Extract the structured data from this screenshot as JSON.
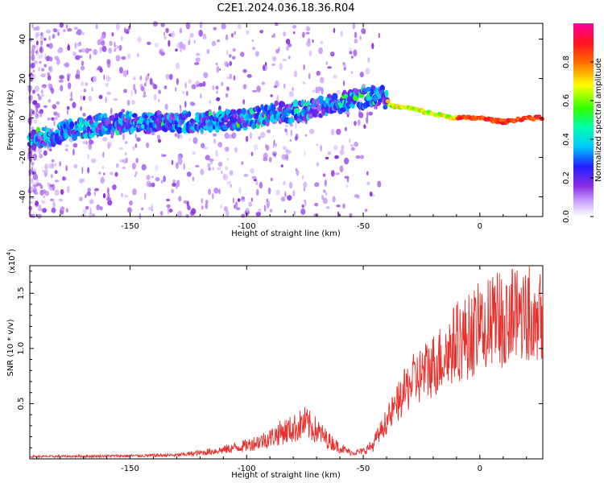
{
  "title": "C2E1.2024.036.18.36.R04",
  "colors": {
    "snr_line": "#e8302c",
    "background": "#ffffff",
    "axes": "#000000"
  },
  "chart_data": [
    {
      "type": "heatmap",
      "xlabel": "Height of straight line (km)",
      "ylabel": "Frequency (Hz)",
      "xlim": [
        -193,
        27
      ],
      "ylim": [
        -50,
        48
      ],
      "xticks": [
        -150,
        -100,
        -50,
        0
      ],
      "yticks": [
        -40,
        -20,
        0,
        20,
        40
      ],
      "colorbar": {
        "label": "Normalized spectral amplitude",
        "range": [
          0.0,
          1.0
        ],
        "ticks": [
          0.0,
          0.2,
          0.4,
          0.6,
          0.8
        ],
        "colormap": [
          "#ffffff",
          "#8a2be2",
          "#0000ff",
          "#00ffff",
          "#00ff00",
          "#ffff00",
          "#ff0000",
          "#ff00aa"
        ]
      },
      "ridge": {
        "description_points_freq_vs_height": [
          [
            -193,
            -12
          ],
          [
            -175,
            -6
          ],
          [
            -160,
            -3
          ],
          [
            -140,
            -2
          ],
          [
            -120,
            -2
          ],
          [
            -100,
            -1
          ],
          [
            -90,
            2
          ],
          [
            -80,
            3
          ],
          [
            -70,
            5
          ],
          [
            -60,
            8
          ],
          [
            -50,
            10
          ],
          [
            -42,
            12
          ],
          [
            -38,
            6
          ],
          [
            -30,
            5
          ],
          [
            -20,
            2
          ],
          [
            -10,
            0
          ],
          [
            0,
            0
          ],
          [
            10,
            -2
          ],
          [
            20,
            0
          ],
          [
            27,
            0
          ]
        ]
      }
    },
    {
      "type": "line",
      "xlabel": "Height of straight line (km)",
      "ylabel": "SNR (10 * v/v)",
      "multiplier_label": "(x10",
      "multiplier_exp": "4",
      "multiplier_close": ")",
      "xlim": [
        -193,
        27
      ],
      "ylim": [
        0,
        1.75
      ],
      "xticks": [
        -150,
        -100,
        -50,
        0
      ],
      "yticks": [
        0.5,
        1.0,
        1.5
      ],
      "ytick_labels": [
        "0.5",
        "1.0",
        "1.5"
      ],
      "series": [
        {
          "envelope_x": [
            -193,
            -150,
            -130,
            -120,
            -110,
            -100,
            -90,
            -85,
            -80,
            -75,
            -70,
            -65,
            -60,
            -55,
            -50,
            -45,
            -40,
            -35,
            -30,
            -25,
            -20,
            -15,
            -10,
            -5,
            0,
            5,
            10,
            15,
            20,
            27
          ],
          "envelope_y": [
            0.03,
            0.04,
            0.05,
            0.08,
            0.12,
            0.18,
            0.28,
            0.36,
            0.4,
            0.48,
            0.38,
            0.25,
            0.15,
            0.08,
            0.1,
            0.2,
            0.4,
            0.6,
            0.8,
            0.9,
            1.0,
            1.1,
            1.25,
            1.3,
            1.4,
            1.45,
            1.5,
            1.55,
            1.6,
            1.62
          ]
        }
      ]
    }
  ]
}
